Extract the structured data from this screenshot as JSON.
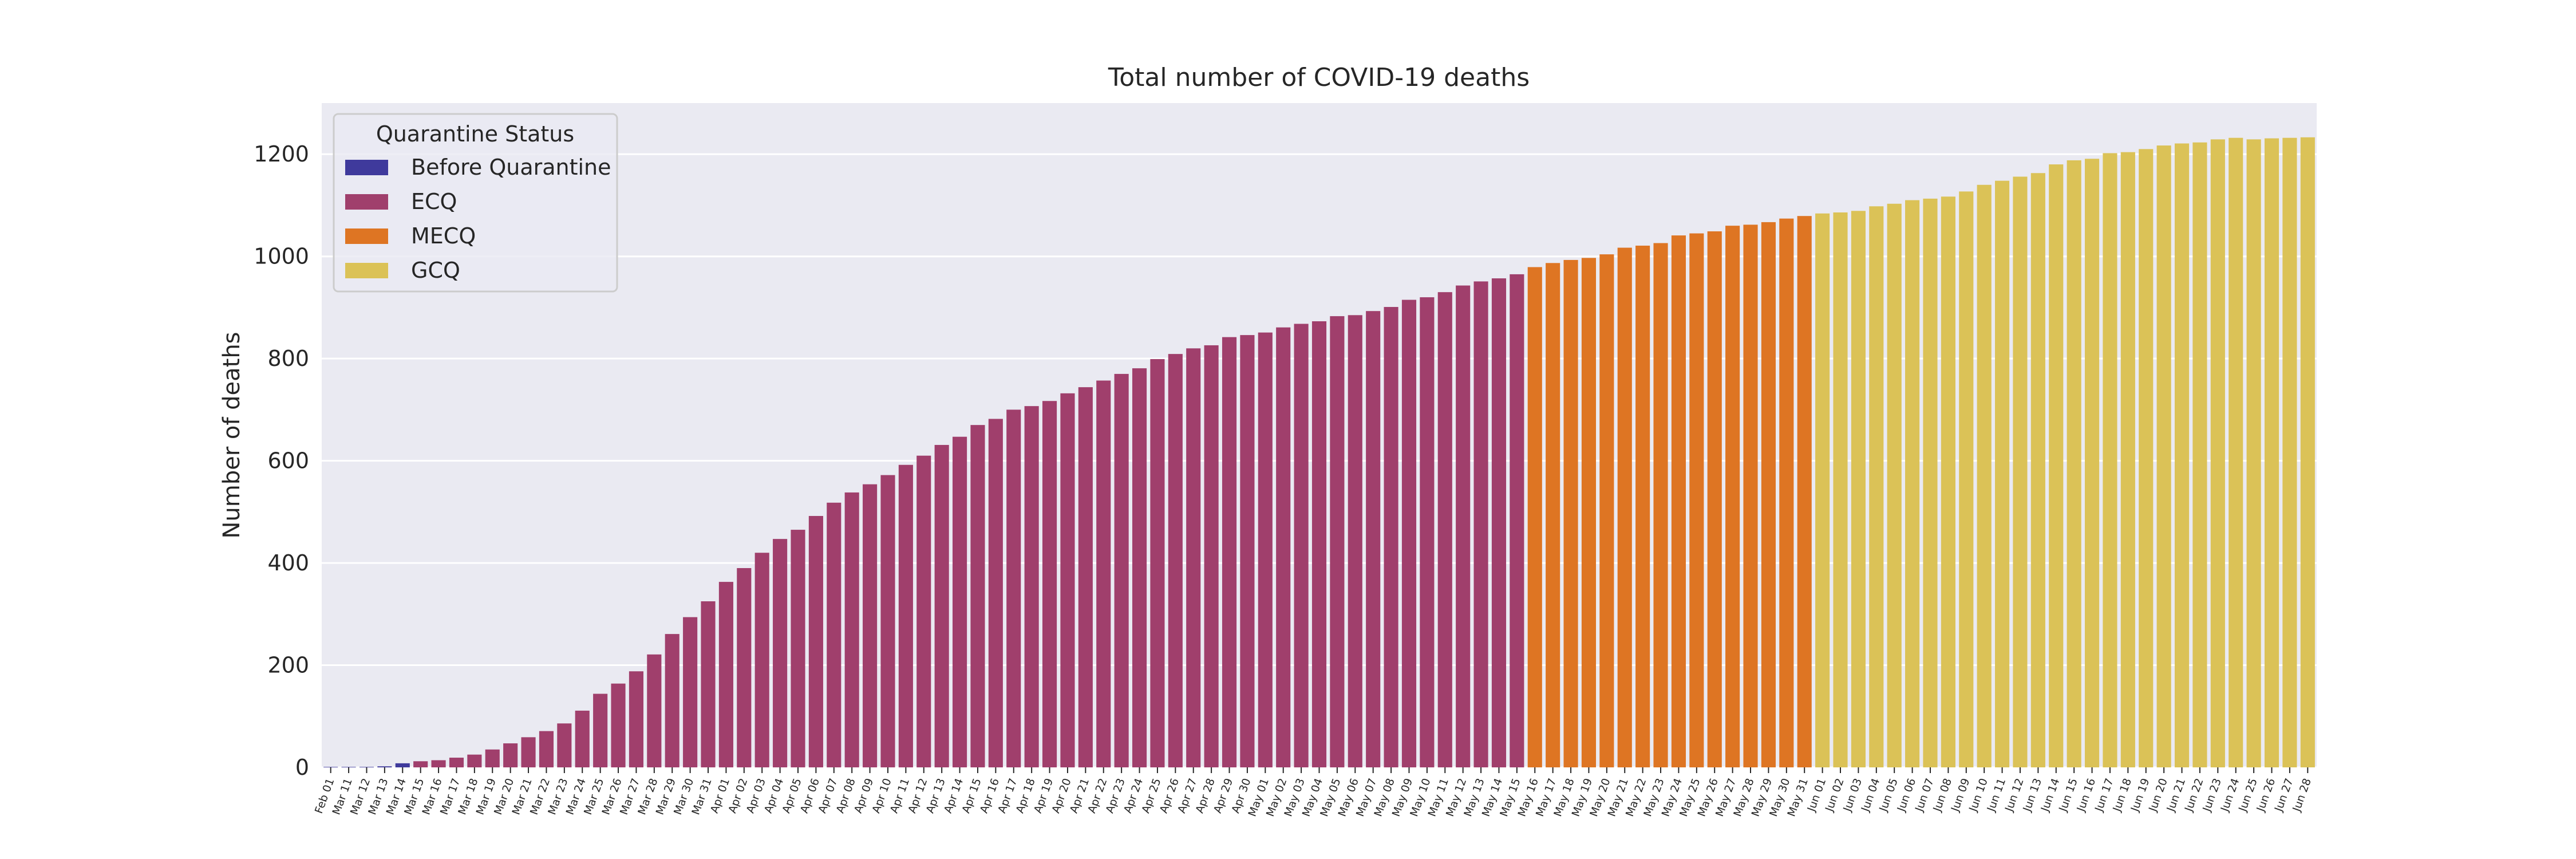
{
  "chart_data": {
    "type": "bar",
    "title": "Total number of COVID-19 deaths",
    "xlabel": "",
    "ylabel": "Number of deaths",
    "ylim": [
      0,
      1300
    ],
    "yticks": [
      0,
      200,
      400,
      600,
      800,
      1000,
      1200
    ],
    "grid": true,
    "legend": {
      "title": "Quarantine Status",
      "placement": "top-left",
      "entries": [
        {
          "name": "Before Quarantine",
          "color": "#3f3a9c"
        },
        {
          "name": "ECQ",
          "color": "#a03f6c"
        },
        {
          "name": "MECQ",
          "color": "#de7523"
        },
        {
          "name": "GCQ",
          "color": "#dbc257"
        }
      ]
    },
    "categories": [
      "Feb 01",
      "Mar 11",
      "Mar 12",
      "Mar 13",
      "Mar 14",
      "Mar 15",
      "Mar 16",
      "Mar 17",
      "Mar 18",
      "Mar 19",
      "Mar 20",
      "Mar 21",
      "Mar 22",
      "Mar 23",
      "Mar 24",
      "Mar 25",
      "Mar 26",
      "Mar 27",
      "Mar 28",
      "Mar 29",
      "Mar 30",
      "Mar 31",
      "Apr 01",
      "Apr 02",
      "Apr 03",
      "Apr 04",
      "Apr 05",
      "Apr 06",
      "Apr 07",
      "Apr 08",
      "Apr 09",
      "Apr 10",
      "Apr 11",
      "Apr 12",
      "Apr 13",
      "Apr 14",
      "Apr 15",
      "Apr 16",
      "Apr 17",
      "Apr 18",
      "Apr 19",
      "Apr 20",
      "Apr 21",
      "Apr 22",
      "Apr 23",
      "Apr 24",
      "Apr 25",
      "Apr 26",
      "Apr 27",
      "Apr 28",
      "Apr 29",
      "Apr 30",
      "May 01",
      "May 02",
      "May 03",
      "May 04",
      "May 05",
      "May 06",
      "May 07",
      "May 08",
      "May 09",
      "May 10",
      "May 11",
      "May 12",
      "May 13",
      "May 14",
      "May 15",
      "May 16",
      "May 17",
      "May 18",
      "May 19",
      "May 20",
      "May 21",
      "May 22",
      "May 23",
      "May 24",
      "May 25",
      "May 26",
      "May 27",
      "May 28",
      "May 29",
      "May 30",
      "May 31",
      "Jun 01",
      "Jun 02",
      "Jun 03",
      "Jun 04",
      "Jun 05",
      "Jun 06",
      "Jun 07",
      "Jun 08",
      "Jun 09",
      "Jun 10",
      "Jun 11",
      "Jun 12",
      "Jun 13",
      "Jun 14",
      "Jun 15",
      "Jun 16",
      "Jun 17",
      "Jun 18",
      "Jun 19",
      "Jun 20",
      "Jun 21",
      "Jun 22",
      "Jun 23",
      "Jun 24",
      "Jun 25",
      "Jun 26",
      "Jun 27",
      "Jun 28"
    ],
    "values": [
      1,
      1,
      1,
      2,
      8,
      12,
      14,
      19,
      25,
      35,
      47,
      59,
      71,
      86,
      111,
      144,
      164,
      188,
      221,
      261,
      294,
      325,
      363,
      390,
      420,
      447,
      465,
      492,
      518,
      538,
      554,
      572,
      592,
      610,
      631,
      647,
      670,
      682,
      700,
      707,
      717,
      732,
      744,
      757,
      770,
      781,
      799,
      809,
      820,
      826,
      842,
      846,
      851,
      861,
      868,
      873,
      883,
      885,
      893,
      901,
      915,
      920,
      930,
      943,
      951,
      957,
      965,
      979,
      987,
      993,
      997,
      1004,
      1017,
      1021,
      1026,
      1041,
      1045,
      1049,
      1060,
      1062,
      1067,
      1074,
      1079,
      1084,
      1086,
      1089,
      1098,
      1103,
      1110,
      1113,
      1117,
      1127,
      1140,
      1148,
      1156,
      1163,
      1180,
      1188,
      1191,
      1202,
      1204,
      1210,
      1217,
      1221,
      1223,
      1229,
      1232,
      1229,
      1231,
      1232,
      1233
    ],
    "status": [
      "Before Quarantine",
      "Before Quarantine",
      "Before Quarantine",
      "Before Quarantine",
      "Before Quarantine",
      "ECQ",
      "ECQ",
      "ECQ",
      "ECQ",
      "ECQ",
      "ECQ",
      "ECQ",
      "ECQ",
      "ECQ",
      "ECQ",
      "ECQ",
      "ECQ",
      "ECQ",
      "ECQ",
      "ECQ",
      "ECQ",
      "ECQ",
      "ECQ",
      "ECQ",
      "ECQ",
      "ECQ",
      "ECQ",
      "ECQ",
      "ECQ",
      "ECQ",
      "ECQ",
      "ECQ",
      "ECQ",
      "ECQ",
      "ECQ",
      "ECQ",
      "ECQ",
      "ECQ",
      "ECQ",
      "ECQ",
      "ECQ",
      "ECQ",
      "ECQ",
      "ECQ",
      "ECQ",
      "ECQ",
      "ECQ",
      "ECQ",
      "ECQ",
      "ECQ",
      "ECQ",
      "ECQ",
      "ECQ",
      "ECQ",
      "ECQ",
      "ECQ",
      "ECQ",
      "ECQ",
      "ECQ",
      "ECQ",
      "ECQ",
      "ECQ",
      "ECQ",
      "ECQ",
      "ECQ",
      "ECQ",
      "ECQ",
      "MECQ",
      "MECQ",
      "MECQ",
      "MECQ",
      "MECQ",
      "MECQ",
      "MECQ",
      "MECQ",
      "MECQ",
      "MECQ",
      "MECQ",
      "MECQ",
      "MECQ",
      "MECQ",
      "MECQ",
      "MECQ",
      "GCQ",
      "GCQ",
      "GCQ",
      "GCQ",
      "GCQ",
      "GCQ",
      "GCQ",
      "GCQ",
      "GCQ",
      "GCQ",
      "GCQ",
      "GCQ",
      "GCQ",
      "GCQ",
      "GCQ",
      "GCQ",
      "GCQ",
      "GCQ",
      "GCQ",
      "GCQ",
      "GCQ",
      "GCQ",
      "GCQ",
      "GCQ",
      "GCQ",
      "GCQ",
      "GCQ",
      "GCQ"
    ]
  }
}
